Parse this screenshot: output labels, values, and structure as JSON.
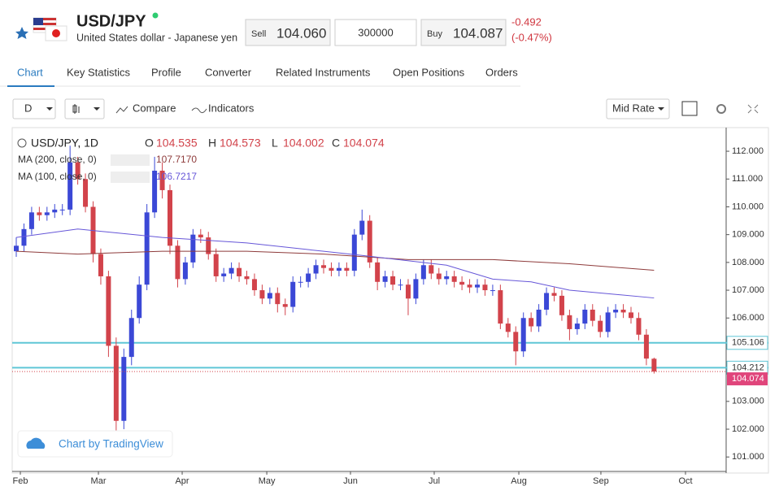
{
  "header": {
    "symbol": "USD/JPY",
    "name": "United States dollar - Japanese yen",
    "sell_label": "Sell",
    "sell": "104.060",
    "quantity": "300000",
    "buy_label": "Buy",
    "buy": "104.087",
    "change": "-0.492",
    "change_pct": "(-0.47%)"
  },
  "tabs": [
    "Chart",
    "Key Statistics",
    "Profile",
    "Converter",
    "Related Instruments",
    "Open Positions",
    "Orders"
  ],
  "toolbar": {
    "interval": "D",
    "compare": "Compare",
    "indicators": "Indicators",
    "rate": "Mid Rate"
  },
  "chart_data": {
    "type": "candlestick",
    "legend_title": "USD/JPY, 1D",
    "ohlc_letters": [
      "O",
      "H",
      "L",
      "C"
    ],
    "credit": "Chart by TradingView",
    "up_color": "#3b48d6",
    "down_color": "#d2434b",
    "open": [
      108.4,
      108.6,
      109.2,
      109.8,
      109.7,
      109.8,
      109.9,
      109.9,
      111.6,
      111.0,
      110.0,
      108.3,
      107.5,
      105.0,
      102.3,
      104.6,
      106.0,
      107.2,
      109.8,
      111.3,
      110.6,
      108.6,
      107.4,
      108.0,
      109.0,
      108.9,
      108.3,
      107.5,
      107.6,
      107.8,
      107.5,
      107.4,
      107.0,
      106.7,
      106.9,
      106.5,
      106.4,
      107.3,
      107.3,
      107.6,
      107.9,
      107.8,
      107.7,
      107.8,
      107.7,
      109.0,
      109.5,
      108.0,
      107.3,
      107.5,
      107.2,
      107.2,
      106.7,
      107.4,
      107.9,
      107.6,
      107.4,
      107.5,
      107.3,
      107.2,
      107.1,
      107.2,
      107.0,
      107.0,
      105.8,
      105.5,
      104.8,
      106.0,
      105.7,
      106.3,
      106.9,
      106.8,
      106.1,
      105.6,
      105.8,
      106.3,
      105.9,
      105.5,
      106.2,
      106.3,
      106.2,
      106.0,
      105.4,
      104.535
    ],
    "high": [
      108.9,
      109.4,
      110.0,
      110.0,
      110.0,
      110.1,
      110.1,
      112.2,
      111.8,
      111.2,
      110.2,
      108.5,
      107.7,
      105.3,
      104.9,
      106.3,
      107.5,
      110.1,
      111.8,
      111.6,
      110.8,
      108.8,
      108.2,
      109.2,
      109.2,
      109.1,
      108.5,
      107.8,
      108.0,
      108.0,
      107.7,
      107.6,
      107.2,
      107.1,
      107.1,
      106.7,
      107.5,
      107.5,
      107.8,
      108.1,
      108.1,
      108.0,
      108.0,
      108.0,
      109.2,
      109.9,
      109.7,
      108.2,
      107.7,
      107.7,
      107.4,
      107.4,
      107.6,
      108.1,
      108.1,
      107.8,
      107.7,
      107.7,
      107.5,
      107.4,
      107.4,
      107.4,
      107.2,
      107.2,
      106.0,
      105.7,
      106.2,
      106.2,
      106.5,
      107.1,
      107.1,
      107.0,
      106.3,
      106.0,
      106.5,
      106.5,
      106.1,
      106.4,
      106.5,
      106.5,
      106.4,
      106.2,
      105.6,
      104.573
    ],
    "low": [
      108.2,
      108.4,
      109.0,
      109.5,
      109.5,
      109.6,
      109.7,
      109.7,
      110.8,
      109.8,
      108.0,
      107.2,
      104.6,
      101.6,
      102.0,
      104.3,
      105.8,
      107.0,
      109.6,
      110.3,
      108.3,
      107.1,
      107.2,
      107.8,
      108.7,
      108.1,
      107.3,
      107.3,
      107.4,
      107.3,
      107.2,
      106.8,
      106.5,
      106.5,
      106.2,
      106.1,
      106.2,
      107.1,
      107.1,
      107.4,
      107.6,
      107.5,
      107.5,
      107.5,
      107.5,
      108.8,
      107.8,
      107.0,
      107.1,
      107.0,
      107.0,
      106.1,
      106.5,
      107.2,
      107.4,
      107.2,
      107.2,
      107.1,
      107.0,
      106.9,
      106.9,
      106.8,
      106.8,
      105.6,
      105.3,
      104.3,
      104.6,
      105.5,
      105.5,
      106.1,
      106.6,
      105.9,
      105.2,
      105.4,
      105.6,
      105.7,
      105.3,
      105.3,
      106.0,
      106.0,
      105.8,
      105.2,
      104.3,
      104.002
    ],
    "close": [
      108.6,
      109.2,
      109.8,
      109.7,
      109.8,
      109.9,
      109.9,
      111.6,
      111.0,
      110.0,
      108.3,
      107.5,
      105.0,
      102.3,
      104.6,
      106.0,
      107.2,
      109.8,
      111.3,
      110.6,
      108.6,
      107.4,
      108.0,
      109.0,
      108.9,
      108.3,
      107.5,
      107.6,
      107.8,
      107.5,
      107.4,
      107.0,
      106.7,
      106.9,
      106.5,
      106.4,
      107.3,
      107.3,
      107.6,
      107.9,
      107.8,
      107.7,
      107.8,
      107.7,
      109.0,
      109.5,
      108.0,
      107.3,
      107.5,
      107.2,
      107.2,
      106.7,
      107.4,
      107.9,
      107.6,
      107.4,
      107.5,
      107.3,
      107.2,
      107.1,
      107.2,
      107.0,
      107.0,
      105.8,
      105.5,
      104.8,
      106.0,
      105.7,
      106.3,
      106.9,
      106.8,
      106.1,
      105.6,
      105.8,
      106.3,
      105.9,
      105.5,
      106.2,
      106.3,
      106.2,
      106.0,
      105.4,
      104.54,
      104.074
    ],
    "series": [
      {
        "name": "MA (200, close, 0)",
        "color": "#8e3b3b",
        "value_label": "107.7170",
        "x": [
          0,
          8,
          19,
          30,
          40,
          51,
          62,
          72,
          83
        ],
        "values": [
          108.4,
          108.3,
          108.4,
          108.4,
          108.3,
          108.1,
          108.1,
          107.95,
          107.717
        ]
      },
      {
        "name": "MA (100, close, 0)",
        "color": "#6656d8",
        "value_label": "106.7217",
        "x": [
          0,
          8,
          19,
          30,
          40,
          45,
          56,
          62,
          67,
          72,
          83
        ],
        "values": [
          108.9,
          109.2,
          108.9,
          108.7,
          108.4,
          108.25,
          107.9,
          107.4,
          107.3,
          107.0,
          106.7217
        ]
      }
    ],
    "levels": [
      {
        "value": 105.106,
        "color": "#5fc6d6"
      },
      {
        "value": 104.212,
        "color": "#5fc6d6"
      }
    ],
    "xlim": [
      -0.53,
      92.38
    ],
    "xticks": [
      {
        "value": 0.53,
        "label": "Feb"
      },
      {
        "value": 10.69,
        "label": "Mar"
      },
      {
        "value": 21.59,
        "label": "Apr"
      },
      {
        "value": 32.6,
        "label": "May"
      },
      {
        "value": 43.49,
        "label": "Jun"
      },
      {
        "value": 54.39,
        "label": "Jul"
      },
      {
        "value": 65.4,
        "label": "Aug"
      },
      {
        "value": 76.08,
        "label": "Sep"
      },
      {
        "value": 87.09,
        "label": "Oct"
      }
    ],
    "ylim": [
      100.48,
      112.85
    ],
    "yticks": [
      {
        "value": 101,
        "label": "101.000"
      },
      {
        "value": 102,
        "label": "102.000"
      },
      {
        "value": 103,
        "label": "103.000"
      },
      {
        "value": 104,
        "label": "104.000"
      },
      {
        "value": 105,
        "label": "105.000"
      },
      {
        "value": 106,
        "label": "106.000"
      },
      {
        "value": 107,
        "label": "107.000"
      },
      {
        "value": 108,
        "label": "108.000"
      },
      {
        "value": 109,
        "label": "109.000"
      },
      {
        "value": 110,
        "label": "110.000"
      },
      {
        "value": 111,
        "label": "111.000"
      },
      {
        "value": 112,
        "label": "112.000"
      }
    ]
  }
}
